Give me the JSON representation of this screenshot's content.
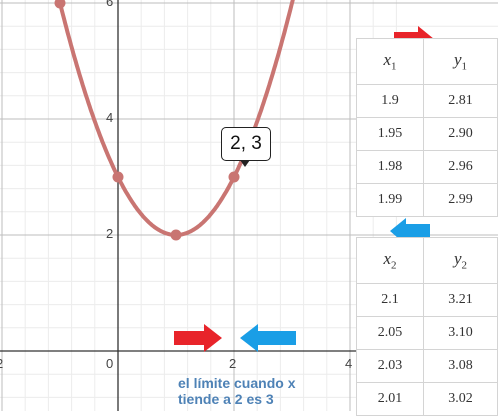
{
  "graph": {
    "x_tick_labels": [
      "2",
      "0",
      "2",
      "4"
    ],
    "y_tick_labels": [
      "6",
      "4",
      "2"
    ],
    "curve_color": "#c97572",
    "point_tooltip": "2, 3"
  },
  "chart_data": {
    "type": "line",
    "series": [
      {
        "x": [
          -1,
          0,
          1,
          2,
          3
        ],
        "y": [
          6,
          3,
          2,
          3,
          6
        ]
      }
    ],
    "points": [
      [
        -1,
        6
      ],
      [
        0,
        3
      ],
      [
        1,
        2
      ],
      [
        2,
        3
      ]
    ],
    "xlim": [
      -2,
      4.2
    ],
    "ylim": [
      -0.3,
      6.1
    ],
    "grid": true
  },
  "table1": {
    "header_x": "x",
    "header_x_sub": "1",
    "header_y": "y",
    "header_y_sub": "1",
    "rows": [
      [
        "1.9",
        "2.81"
      ],
      [
        "1.95",
        "2.90"
      ],
      [
        "1.98",
        "2.96"
      ],
      [
        "1.99",
        "2.99"
      ]
    ]
  },
  "table2": {
    "header_x": "x",
    "header_x_sub": "2",
    "header_y": "y",
    "header_y_sub": "2",
    "rows": [
      [
        "2.1",
        "3.21"
      ],
      [
        "2.05",
        "3.10"
      ],
      [
        "2.03",
        "3.08"
      ],
      [
        "2.01",
        "3.02"
      ]
    ]
  },
  "arrows": {
    "right_color": "#e8242a",
    "left_color": "#1a9ee6"
  },
  "caption": {
    "line1": "el límite cuando x",
    "line2": "tiende a 2 es 3"
  }
}
